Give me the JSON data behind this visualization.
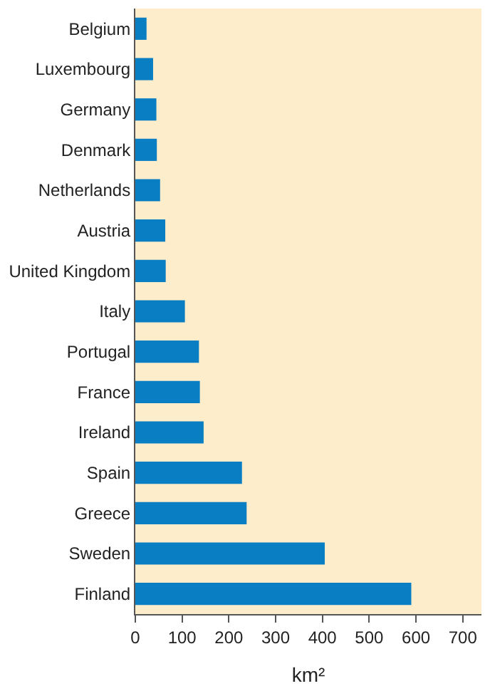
{
  "chart_data": {
    "type": "bar",
    "orientation": "horizontal",
    "xlabel": "km²",
    "categories": [
      "Belgium",
      "Luxembourg",
      "Germany",
      "Denmark",
      "Netherlands",
      "Austria",
      "United Kingdom",
      "Italy",
      "Portugal",
      "France",
      "Ireland",
      "Spain",
      "Greece",
      "Sweden",
      "Finland"
    ],
    "values": [
      24,
      38,
      45,
      46,
      53,
      64,
      65,
      106,
      136,
      138,
      146,
      228,
      238,
      405,
      590
    ],
    "color": "#0a7ec2",
    "xlim": [
      0,
      740
    ],
    "xticks": [
      0,
      100,
      200,
      300,
      400,
      500,
      600,
      700
    ],
    "grid": false
  }
}
